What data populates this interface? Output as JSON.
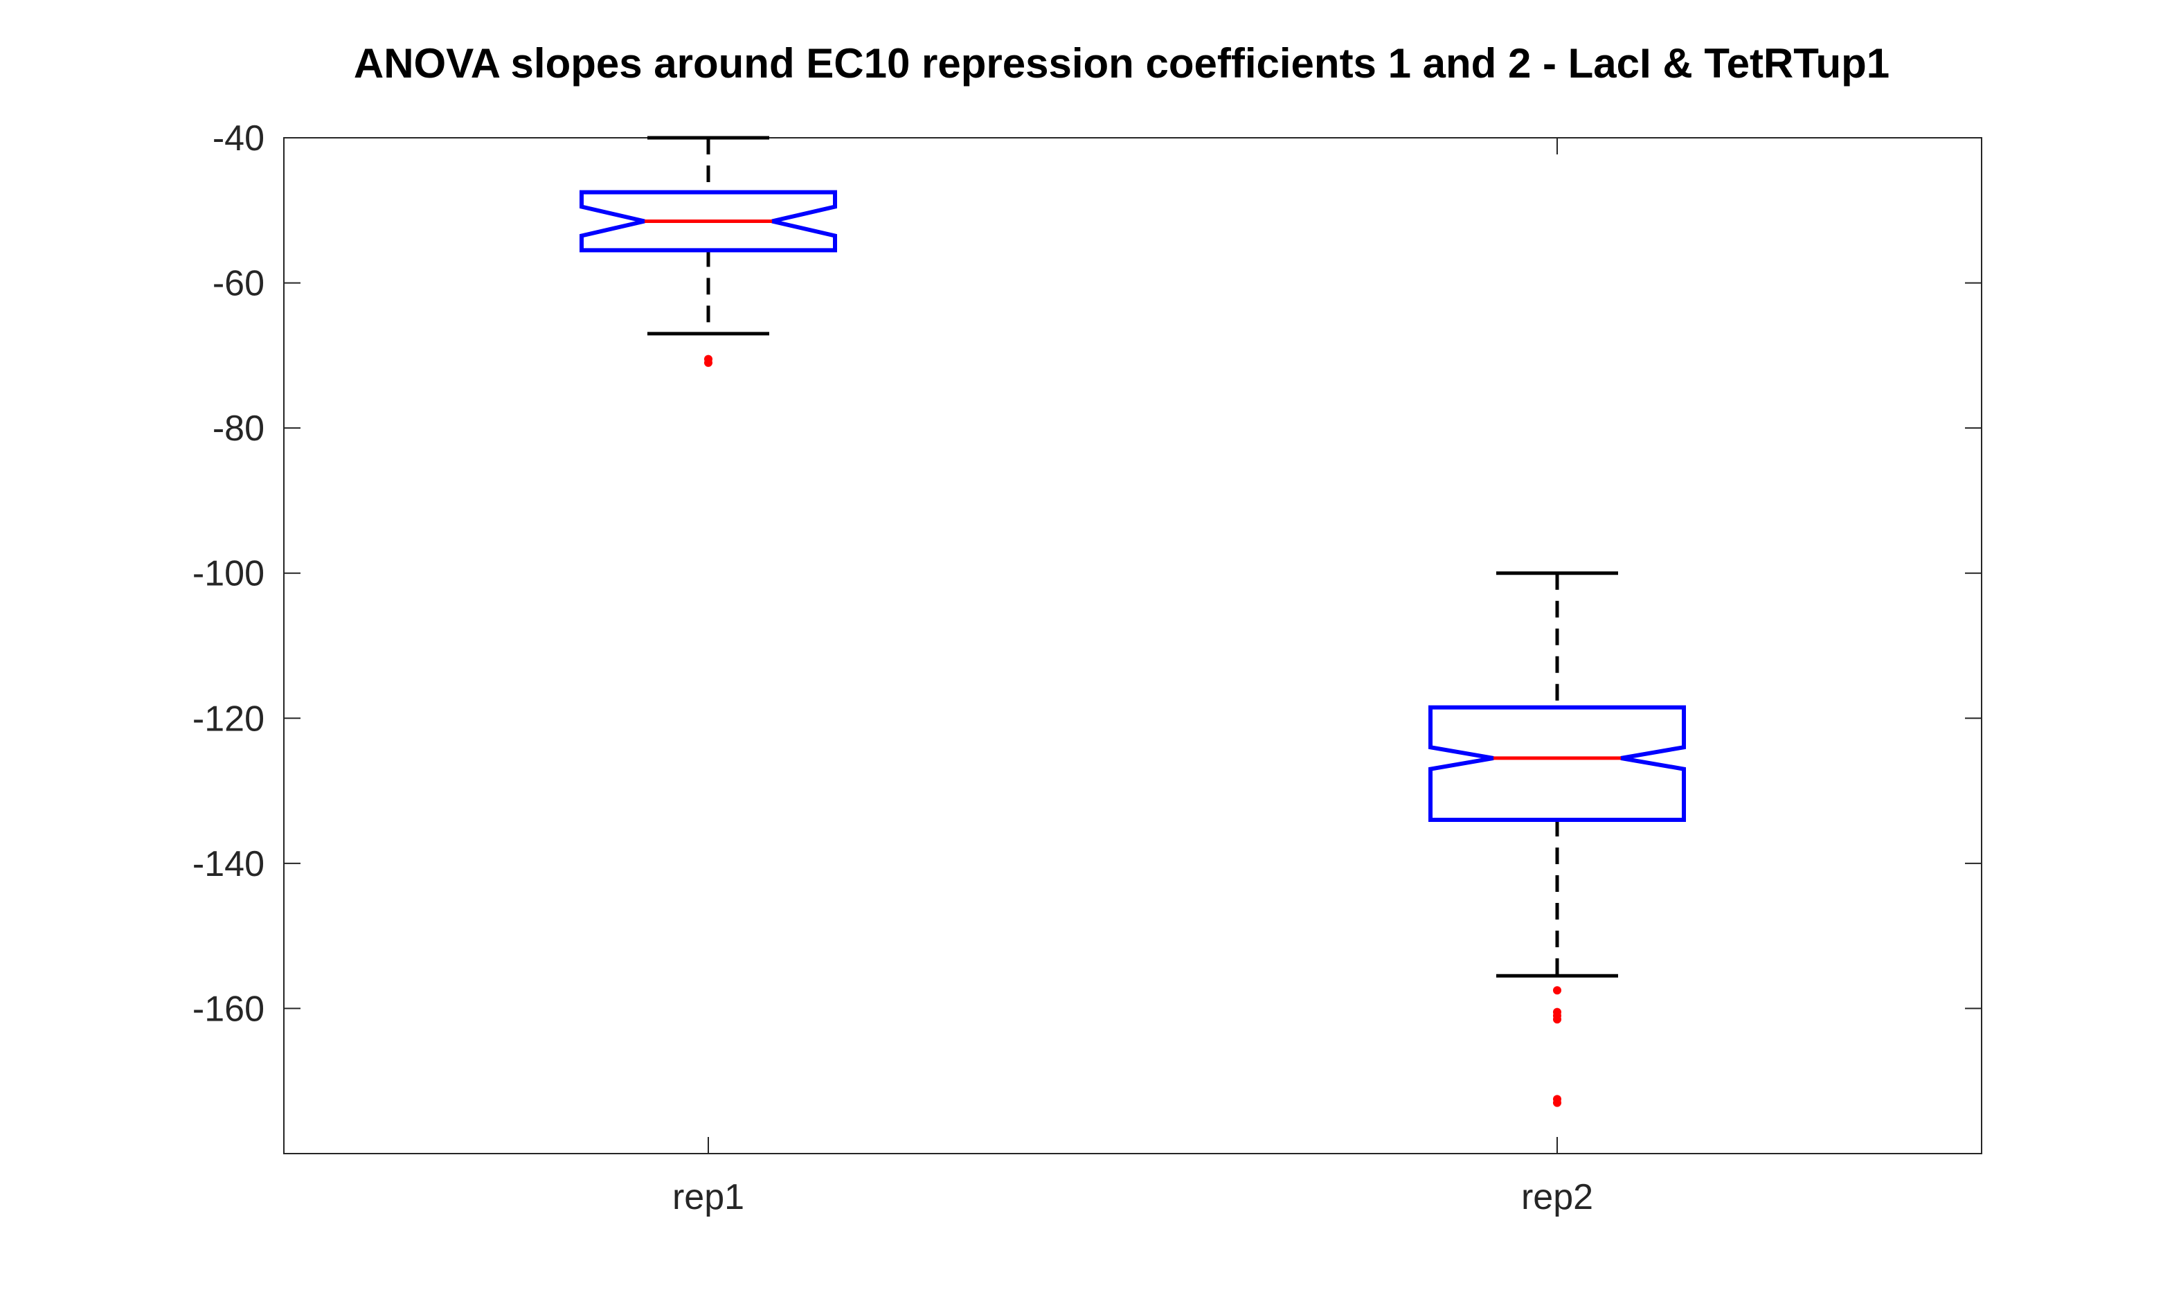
{
  "chart_data": {
    "type": "boxplot",
    "title": "ANOVA slopes around EC10 repression coefficients 1 and 2 - LacI & TetRTup1",
    "xlabel": "",
    "ylabel": "",
    "categories": [
      "rep1",
      "rep2"
    ],
    "ylim": [
      -180,
      -40
    ],
    "yticks": [
      -40,
      -60,
      -80,
      -100,
      -120,
      -140,
      -160
    ],
    "grid": false,
    "notched": true,
    "boxes": [
      {
        "category": "rep1",
        "whisker_high": -40,
        "q3": -47.5,
        "notch_high": -49.5,
        "median": -51.5,
        "notch_low": -53.5,
        "q1": -55.5,
        "whisker_low": -67,
        "outliers": [
          -70.5,
          -71
        ]
      },
      {
        "category": "rep2",
        "whisker_high": -100,
        "q3": -118.5,
        "notch_high": -124,
        "median": -125.5,
        "notch_low": -127,
        "q1": -134,
        "whisker_low": -155.5,
        "outliers": [
          -157.5,
          -160.5,
          -161,
          -161.5,
          -172.5,
          -173
        ]
      }
    ],
    "colors": {
      "box": "#0000ff",
      "median": "#ff0000",
      "whisker": "#000000",
      "outlier": "#ff0000",
      "axes": "#262626"
    }
  }
}
